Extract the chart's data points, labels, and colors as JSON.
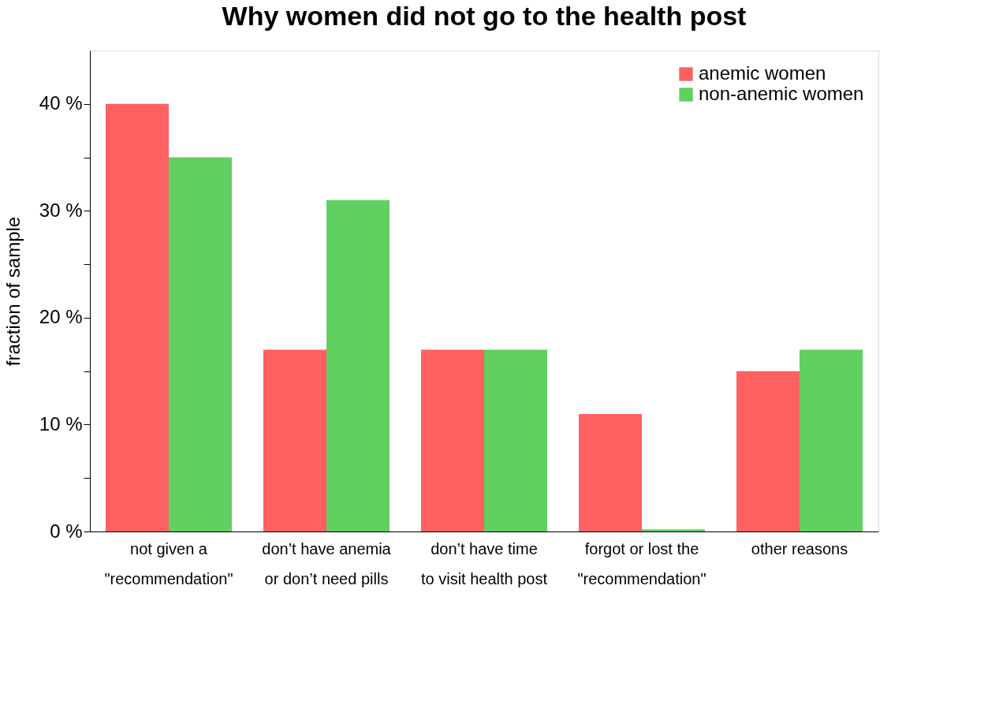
{
  "chart_data": {
    "type": "bar",
    "title": "Why women did not go to the health post",
    "ylabel": "fraction of sample",
    "categories": [
      "not given a\n\"recommendation\"",
      "don’t have anemia\nor don’t need pills",
      "don’t have time\nto visit health post",
      "forgot or lost the\n\"recommendation\"",
      "other reasons"
    ],
    "series": [
      {
        "name": "anemic women",
        "color": "#ff6060",
        "values": [
          40,
          17,
          17,
          11,
          15
        ]
      },
      {
        "name": "non-anemic women",
        "color": "#60d060",
        "values": [
          35,
          31,
          17,
          0.2,
          17
        ]
      }
    ],
    "ylim": [
      0,
      45
    ],
    "yticks": [
      {
        "value": 0,
        "label": "0 %"
      },
      {
        "value": 5,
        "label": null
      },
      {
        "value": 10,
        "label": "10 %"
      },
      {
        "value": 15,
        "label": null
      },
      {
        "value": 20,
        "label": "20 %"
      },
      {
        "value": 25,
        "label": null
      },
      {
        "value": 30,
        "label": "30 %"
      },
      {
        "value": 35,
        "label": null
      },
      {
        "value": 40,
        "label": "40 %"
      }
    ],
    "legend": "top right",
    "grid": false
  }
}
